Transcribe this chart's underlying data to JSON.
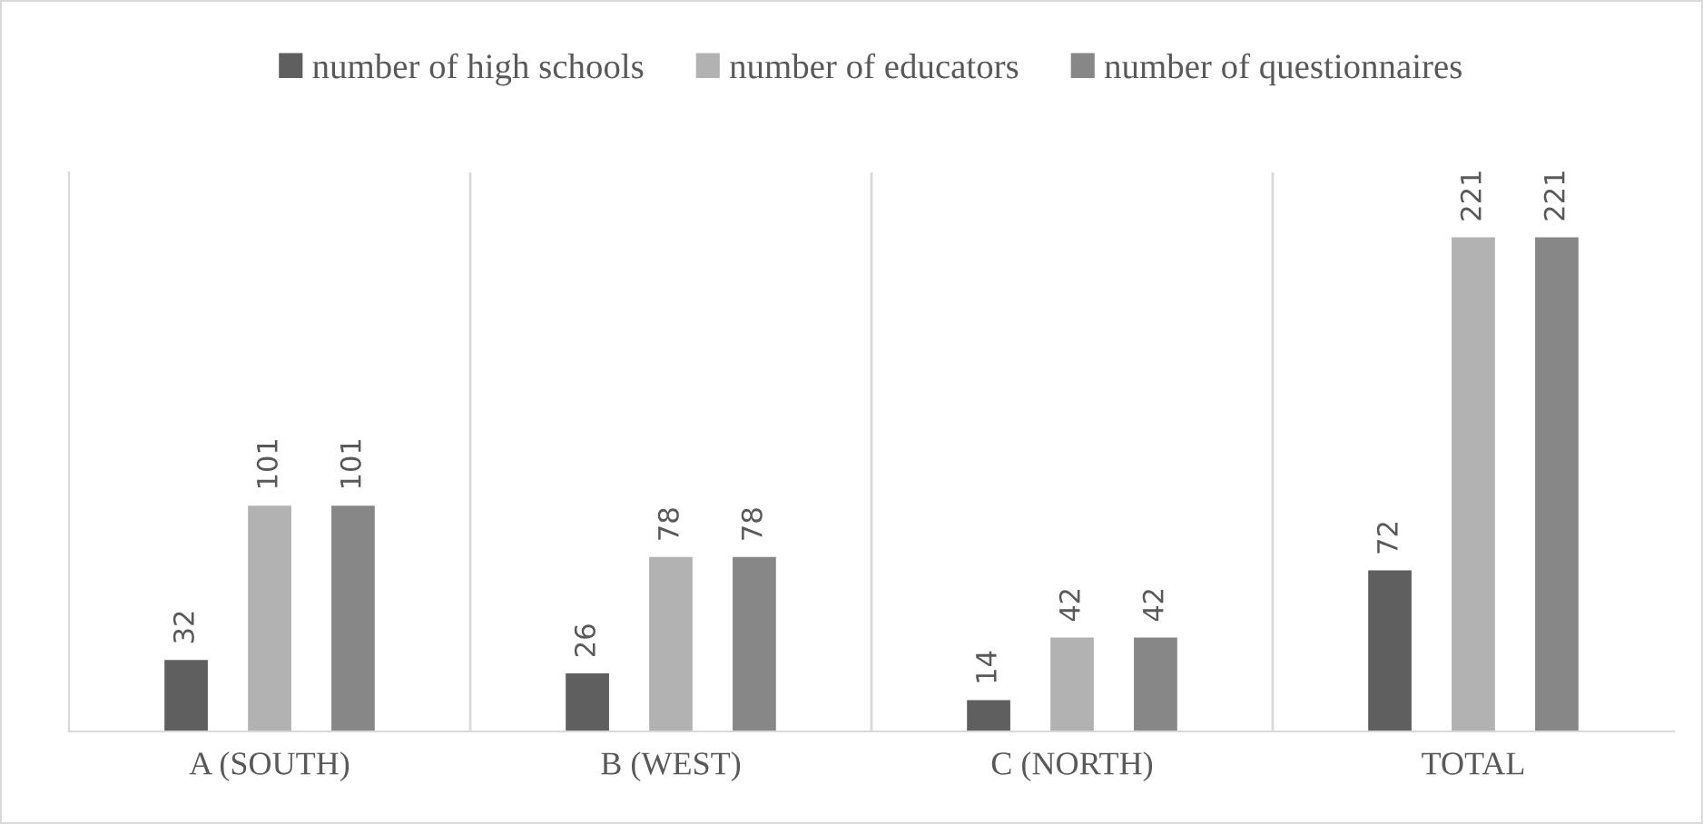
{
  "chart_data": {
    "type": "bar",
    "categories": [
      "A (SOUTH)",
      "B (WEST)",
      "C (NORTH)",
      "TOTAL"
    ],
    "series": [
      {
        "name": "number of high schools",
        "color": "#5f5f5f",
        "values": [
          32,
          26,
          14,
          72
        ]
      },
      {
        "name": "number of educators",
        "color": "#b2b2b2",
        "values": [
          101,
          78,
          42,
          221
        ]
      },
      {
        "name": "number of questionnaires",
        "color": "#878787",
        "values": [
          101,
          78,
          42,
          221
        ]
      }
    ],
    "ylim": [
      0,
      250
    ],
    "tick_labels": "x",
    "data_labels": true,
    "grid": "x",
    "legend": "top"
  }
}
